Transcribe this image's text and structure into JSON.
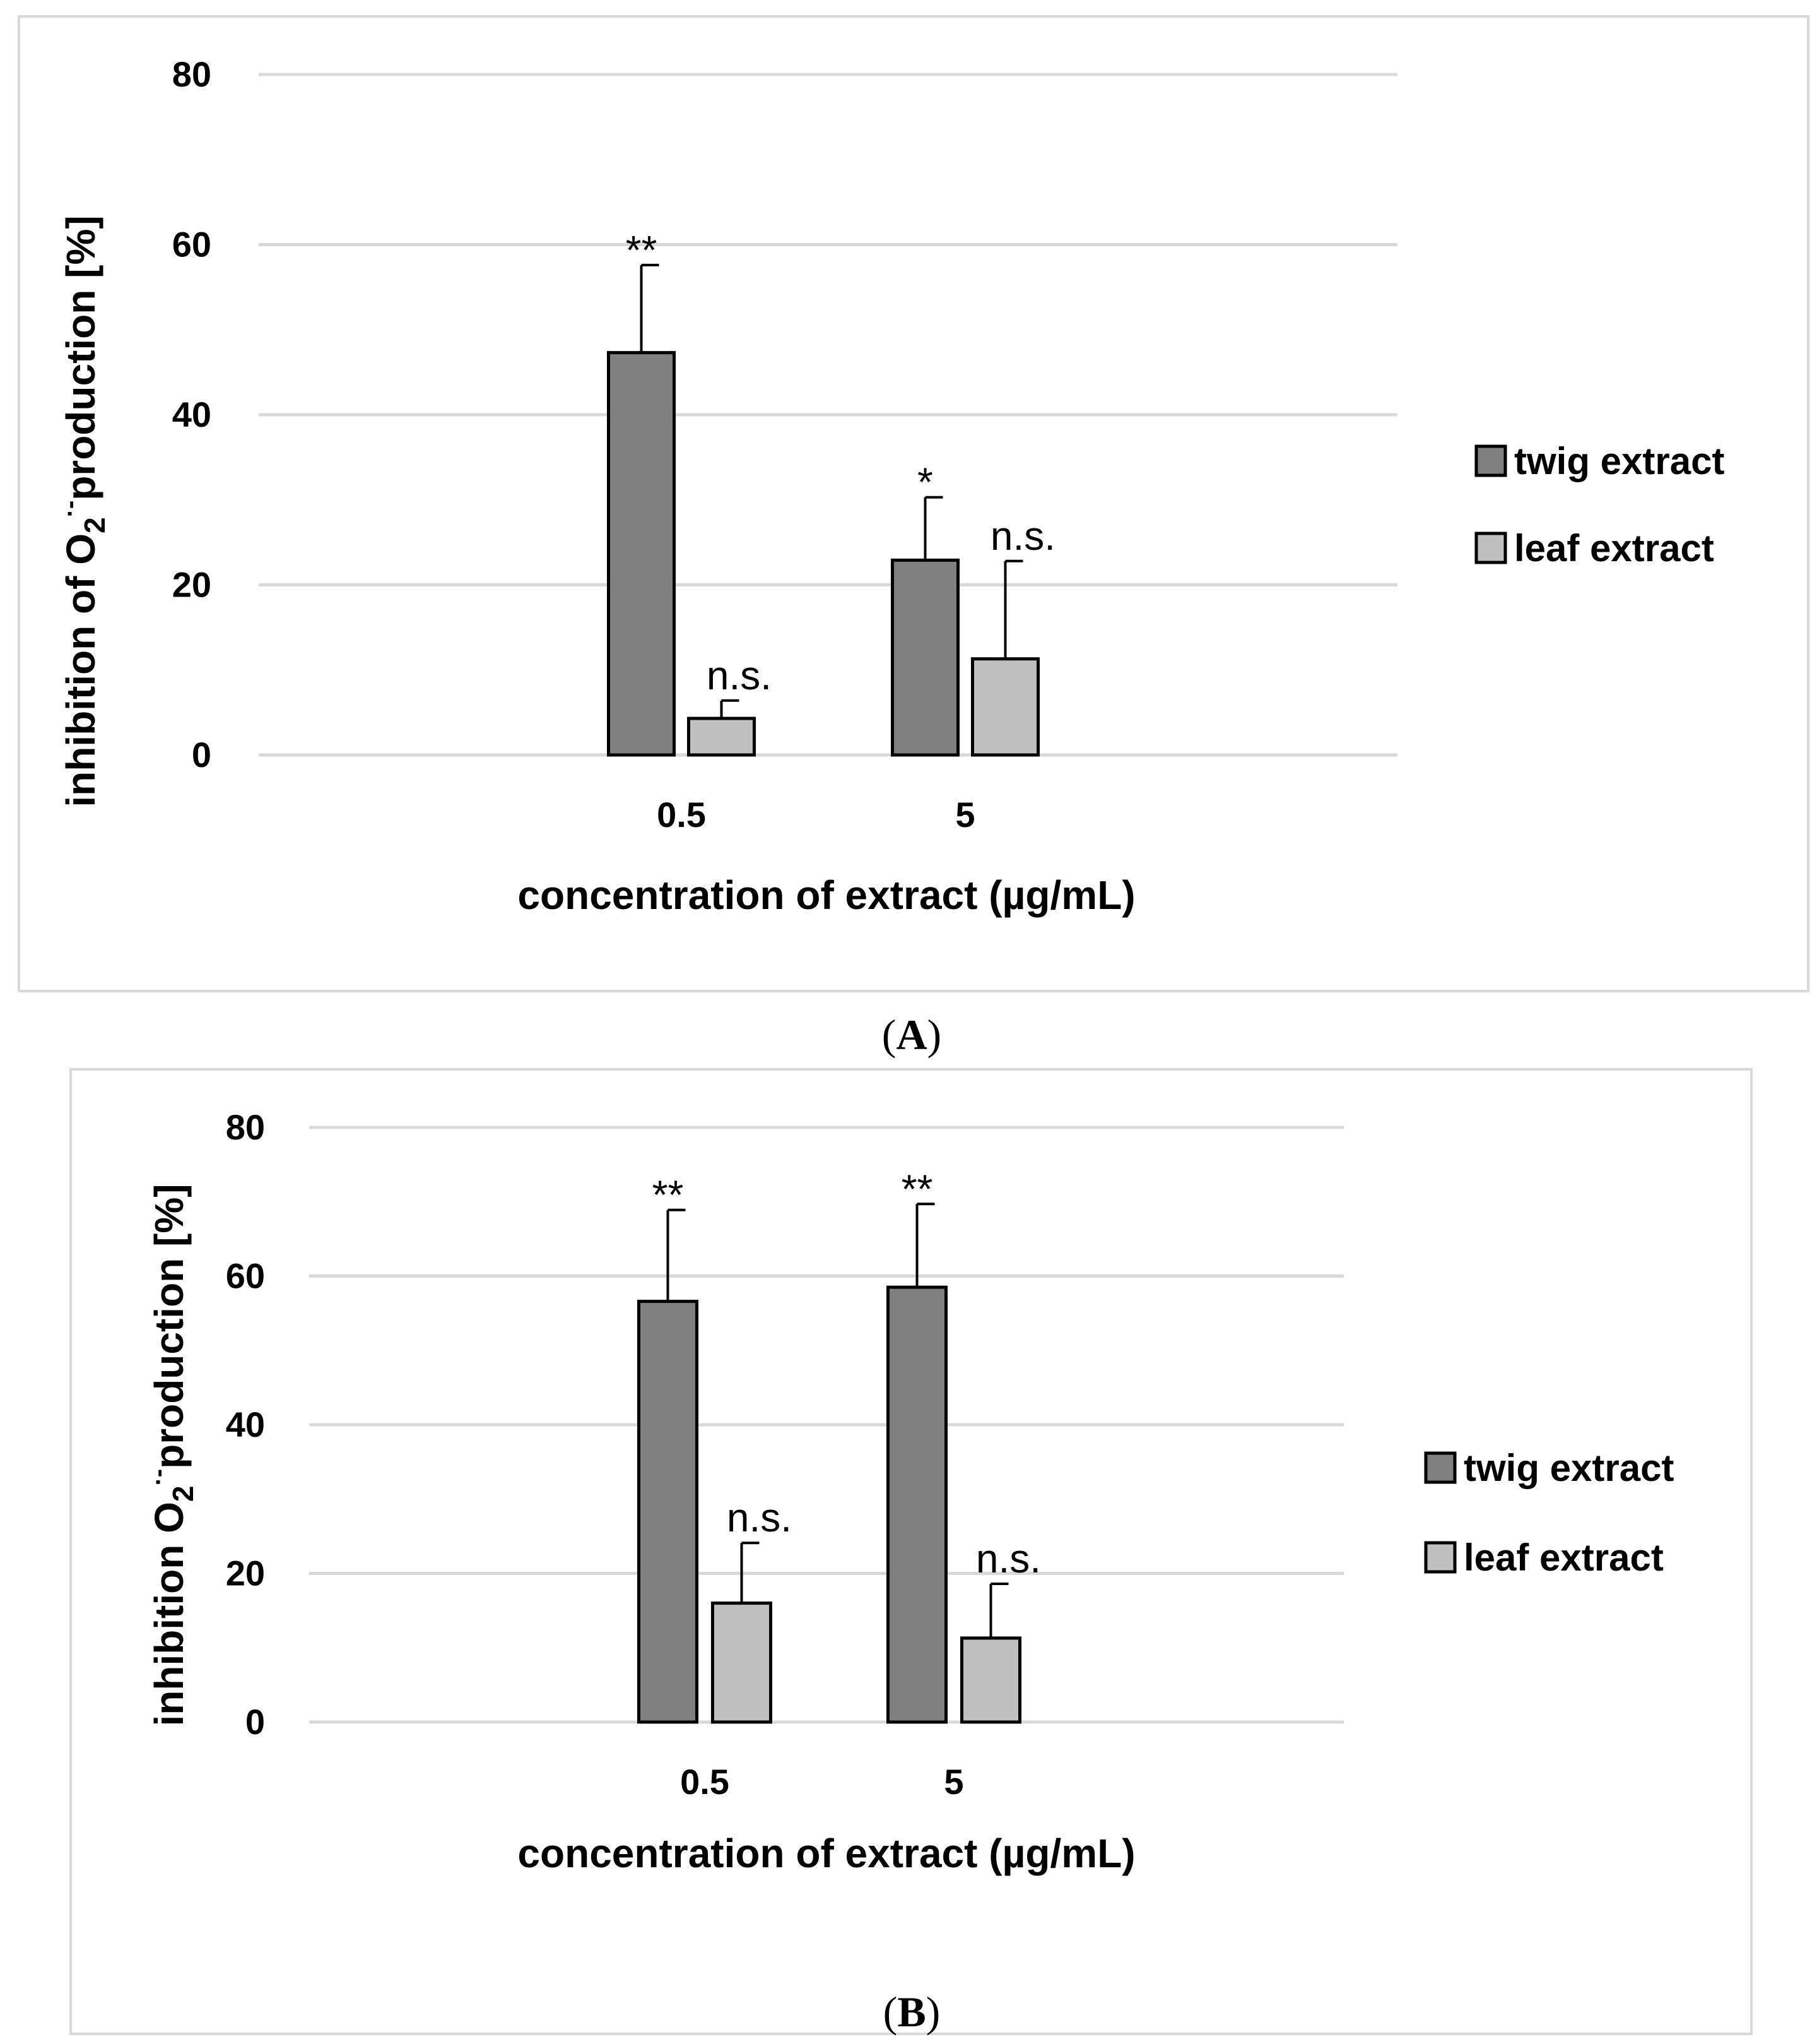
{
  "chart_data": [
    {
      "panel": "A",
      "type": "bar",
      "title": "",
      "xlabel": "concentration of extract (µg/mL)",
      "ylabel": {
        "main": "inhibition of  O",
        "sub": "2",
        "sup": "·-",
        "rest": "production [%]"
      },
      "categories": [
        "0.5",
        "5"
      ],
      "ylim": [
        0,
        80
      ],
      "yticks": [
        "0",
        "20",
        "40",
        "60",
        "80"
      ],
      "grid": true,
      "legend": "right",
      "series": [
        {
          "name": "twig extract",
          "color": "#808080",
          "values": [
            47.3,
            22.9
          ],
          "errors": [
            10.3,
            7.4
          ],
          "annotations": [
            "**",
            "*"
          ]
        },
        {
          "name": "leaf extract",
          "color": "#c0c0c0",
          "values": [
            4.3,
            11.3
          ],
          "errors": [
            2.1,
            11.5
          ],
          "annotations": [
            "n.s.",
            "n.s."
          ]
        }
      ]
    },
    {
      "panel": "B",
      "type": "bar",
      "title": "",
      "xlabel": "concentration of extract (µg/mL)",
      "ylabel": {
        "main": "inhibition O",
        "sub": "2",
        "sup": "·-",
        "rest": "production [%]"
      },
      "categories": [
        "0.5",
        "5"
      ],
      "ylim": [
        0,
        80
      ],
      "yticks": [
        "0",
        "20",
        "40",
        "60",
        "80"
      ],
      "grid": true,
      "legend": "right",
      "series": [
        {
          "name": "twig extract",
          "color": "#808080",
          "values": [
            56.6,
            58.5
          ],
          "errors": [
            12.3,
            11.2
          ],
          "annotations": [
            "**",
            "**"
          ]
        },
        {
          "name": "leaf extract",
          "color": "#c0c0c0",
          "values": [
            16.0,
            11.3
          ],
          "errors": [
            8.1,
            7.3
          ],
          "annotations": [
            "n.s.",
            "n.s."
          ]
        }
      ]
    }
  ],
  "panel_labels": [
    "A",
    "B"
  ]
}
